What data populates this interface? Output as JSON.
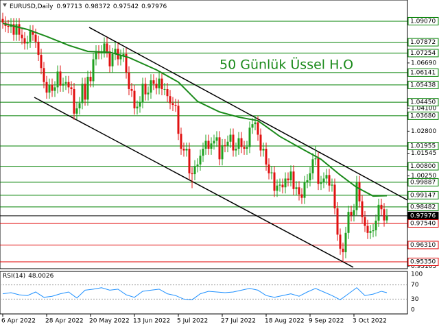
{
  "chart_data": {
    "type": "candlestick",
    "symbol": "EURUSD,Daily",
    "up_color": "#1fa01f",
    "down_color": "#e01010",
    "open": [
      1.092,
      1.09,
      1.088,
      1.0875,
      1.089,
      1.083,
      1.089,
      1.083,
      1.081,
      1.078,
      1.079,
      1.085,
      1.083,
      1.079,
      1.0715,
      1.064,
      1.056,
      1.05,
      1.0545,
      1.051,
      1.053,
      1.062,
      1.054,
      1.055,
      1.056,
      1.053,
      1.052,
      1.038,
      1.041,
      1.044,
      1.055,
      1.046,
      1.059,
      1.0565,
      1.069,
      1.0735,
      1.0725,
      1.0735,
      1.078,
      1.0735,
      1.065,
      1.072,
      1.075,
      1.069,
      1.071,
      1.072,
      1.0615,
      1.052,
      1.051,
      1.041,
      1.042,
      1.0445,
      1.055,
      1.049,
      1.05,
      1.057,
      1.055,
      1.0525,
      1.058,
      1.052,
      1.052,
      1.048,
      1.044,
      1.043,
      1.0425,
      1.0265,
      1.018,
      1.017,
      1.018,
      1.004,
      1.0035,
      1.008,
      1.009,
      1.014,
      1.018,
      1.0225,
      1.018,
      1.021,
      1.0225,
      1.0245,
      1.012,
      1.02,
      1.0195,
      1.022,
      1.026,
      1.017,
      1.018,
      1.024,
      1.019,
      1.018,
      1.019,
      1.03,
      1.032,
      1.033,
      1.026,
      1.017,
      1.018,
      1.009,
      1.004,
      1.0045,
      0.994,
      0.997,
      0.9975,
      0.996,
      1.001,
      1.0,
      1.005,
      0.995,
      0.996,
      0.992,
      0.99,
      0.999,
      1.0,
      1.004,
      1.012,
      1.0125,
      0.998,
      0.999,
      1.001,
      1.003,
      0.997,
      0.9975,
      0.984,
      0.969,
      0.961,
      0.959,
      0.97,
      0.982,
      0.98,
      0.983,
      0.999,
      0.988,
      0.979,
      0.974,
      0.97,
      0.971,
      0.9715,
      0.977,
      0.986,
      0.9835,
      0.97713
    ],
    "high": [
      1.0955,
      1.0935,
      1.0915,
      1.0925,
      1.0925,
      1.0925,
      1.0925,
      1.0865,
      1.0845,
      1.0825,
      1.0885,
      1.0885,
      1.0865,
      1.0825,
      1.075,
      1.0675,
      1.0595,
      1.058,
      1.058,
      1.0565,
      1.0655,
      1.0655,
      1.0585,
      1.0595,
      1.0595,
      1.0565,
      1.0555,
      1.0445,
      1.0475,
      1.0585,
      1.0585,
      1.0625,
      1.0625,
      1.0725,
      1.077,
      1.077,
      1.077,
      1.0815,
      1.0815,
      1.077,
      1.0755,
      1.0785,
      1.0785,
      1.0745,
      1.0755,
      1.0755,
      1.065,
      1.0555,
      1.0545,
      1.0455,
      1.048,
      1.0585,
      1.0585,
      1.0535,
      1.0605,
      1.0605,
      1.0585,
      1.0615,
      1.0615,
      1.0555,
      1.0555,
      1.0515,
      1.0475,
      1.0465,
      1.046,
      1.03,
      1.0215,
      1.0215,
      1.0215,
      1.0075,
      1.0115,
      1.0125,
      1.0175,
      1.0215,
      1.026,
      1.026,
      1.0245,
      1.026,
      1.028,
      1.028,
      1.0235,
      1.0235,
      1.0255,
      1.0295,
      1.0295,
      1.0215,
      1.0275,
      1.0275,
      1.0225,
      1.0225,
      1.0335,
      1.0355,
      1.0365,
      1.0365,
      1.0295,
      1.0215,
      1.0215,
      1.0125,
      1.008,
      1.008,
      1.0005,
      1.001,
      1.001,
      1.0045,
      1.0045,
      1.0085,
      1.0085,
      0.9995,
      0.9995,
      0.9955,
      1.0025,
      1.0035,
      1.0075,
      1.0155,
      1.0195,
      1.016,
      1.0025,
      1.0045,
      1.0065,
      1.0065,
      1.001,
      1.001,
      0.9875,
      0.9725,
      0.9645,
      0.9735,
      0.9855,
      0.9855,
      0.9865,
      1.0025,
      1.0025,
      0.9915,
      0.9825,
      0.9775,
      0.9745,
      0.975,
      0.9805,
      0.9895,
      0.9895,
      0.987,
      0.98372
    ],
    "low": [
      1.0865,
      1.0845,
      1.084,
      1.084,
      1.0795,
      1.0795,
      1.0795,
      1.0775,
      1.0745,
      1.0745,
      1.0755,
      1.0795,
      1.0755,
      1.068,
      1.0605,
      1.0525,
      1.0465,
      1.0465,
      1.0475,
      1.0475,
      1.0495,
      1.0505,
      1.0505,
      1.0515,
      1.0495,
      1.0485,
      1.0345,
      1.0345,
      1.0375,
      1.0405,
      1.0425,
      1.0425,
      1.053,
      1.053,
      1.0655,
      1.069,
      1.069,
      1.07,
      1.07,
      1.0615,
      1.0615,
      1.0685,
      1.0655,
      1.0655,
      1.0675,
      1.058,
      1.0485,
      1.0475,
      1.0375,
      1.0375,
      1.0385,
      1.041,
      1.0455,
      1.0455,
      1.0465,
      1.0515,
      1.049,
      1.049,
      1.0485,
      1.0485,
      1.0445,
      1.0405,
      1.0395,
      1.039,
      1.023,
      1.0145,
      1.0135,
      1.0135,
      1.0005,
      0.9955,
      1.0,
      1.0045,
      1.0055,
      1.0105,
      1.0145,
      1.0145,
      1.0145,
      1.0175,
      1.019,
      1.0085,
      1.0085,
      1.016,
      1.016,
      1.0185,
      1.0135,
      1.0135,
      1.0145,
      1.0155,
      1.0145,
      1.0145,
      1.0155,
      1.0265,
      1.0285,
      1.0225,
      1.0135,
      1.0135,
      1.0055,
      1.0005,
      1.0005,
      0.9905,
      0.9905,
      0.9935,
      0.9925,
      0.9925,
      0.9965,
      0.9965,
      0.9915,
      0.9915,
      0.9885,
      0.9865,
      0.9865,
      0.9955,
      0.9965,
      1.0005,
      1.0085,
      0.9945,
      0.9945,
      0.9955,
      0.9975,
      0.9935,
      0.9935,
      0.9805,
      0.9655,
      0.9575,
      0.9536,
      0.9555,
      0.9665,
      0.9765,
      0.9765,
      0.9795,
      0.9845,
      0.9755,
      0.9705,
      0.9665,
      0.9665,
      0.9675,
      0.968,
      0.9735,
      0.98,
      0.9736,
      0.97542
    ],
    "close": [
      1.09,
      1.088,
      1.0875,
      1.089,
      1.083,
      1.089,
      1.083,
      1.081,
      1.078,
      1.079,
      1.085,
      1.083,
      1.079,
      1.0715,
      1.064,
      1.056,
      1.05,
      1.0545,
      1.051,
      1.053,
      1.062,
      1.054,
      1.055,
      1.056,
      1.053,
      1.052,
      1.038,
      1.041,
      1.044,
      1.055,
      1.046,
      1.059,
      1.0565,
      1.069,
      1.0735,
      1.0725,
      1.0735,
      1.078,
      1.0735,
      1.065,
      1.072,
      1.075,
      1.069,
      1.071,
      1.072,
      1.0615,
      1.052,
      1.051,
      1.041,
      1.042,
      1.0445,
      1.055,
      1.049,
      1.05,
      1.057,
      1.055,
      1.0525,
      1.058,
      1.052,
      1.052,
      1.048,
      1.044,
      1.043,
      1.0425,
      1.0265,
      1.018,
      1.017,
      1.018,
      1.004,
      1.0035,
      1.008,
      1.009,
      1.014,
      1.018,
      1.0225,
      1.018,
      1.021,
      1.0225,
      1.0245,
      1.012,
      1.02,
      1.0195,
      1.022,
      1.026,
      1.017,
      1.018,
      1.024,
      1.019,
      1.018,
      1.019,
      1.03,
      1.032,
      1.033,
      1.026,
      1.017,
      1.018,
      1.009,
      1.004,
      1.0045,
      0.994,
      0.997,
      0.9975,
      0.996,
      1.001,
      1.0,
      1.005,
      0.995,
      0.996,
      0.992,
      0.99,
      0.999,
      1.0,
      1.004,
      1.012,
      1.0125,
      0.998,
      0.999,
      1.001,
      1.003,
      0.997,
      0.9975,
      0.984,
      0.969,
      0.961,
      0.959,
      0.97,
      0.982,
      0.98,
      0.983,
      0.999,
      0.988,
      0.979,
      0.974,
      0.97,
      0.971,
      0.9715,
      0.977,
      0.986,
      0.9835,
      0.9771,
      0.97976
    ],
    "xlim": [
      -1,
      147.5
    ],
    "ylim": [
      0.9496,
      1.1028
    ],
    "xticks": [
      {
        "value": 0,
        "label": "6 Apr 2022"
      },
      {
        "value": 16,
        "label": "28 Apr 2022"
      },
      {
        "value": 32,
        "label": "20 May 2022"
      },
      {
        "value": 48,
        "label": "13 Jun 2022"
      },
      {
        "value": 64,
        "label": "5 Jul 2022"
      },
      {
        "value": 80,
        "label": "27 Jul 2022"
      },
      {
        "value": 96,
        "label": "18 Aug 2022"
      },
      {
        "value": 112,
        "label": "9 Sep 2022"
      },
      {
        "value": 128,
        "label": "3 Oct 2022"
      }
    ],
    "yticks": [
      {
        "value": 1.0669,
        "label": "1.06690"
      },
      {
        "value": 1.041,
        "label": "1.04100"
      },
      {
        "value": 1.028,
        "label": "1.02800"
      },
      {
        "value": 1.01545,
        "label": "1.01545"
      },
      {
        "value": 1.0025,
        "label": "1.00250"
      },
      {
        "value": 0.95105,
        "label": "0.95105"
      }
    ],
    "levels": [
      {
        "value": 1.0907,
        "label": "1.09070",
        "color": "#008000"
      },
      {
        "value": 1.07872,
        "label": "1.07872",
        "color": "#008000"
      },
      {
        "value": 1.07254,
        "label": "1.07254",
        "color": "#008000"
      },
      {
        "value": 1.06141,
        "label": "1.06141",
        "color": "#008000"
      },
      {
        "value": 1.05438,
        "label": "1.05438",
        "color": "#008000"
      },
      {
        "value": 1.0445,
        "label": "1.04450",
        "color": "#008000"
      },
      {
        "value": 1.0368,
        "label": "1.03680",
        "color": "#008000"
      },
      {
        "value": 1.01955,
        "label": "1.01955",
        "color": "#008000"
      },
      {
        "value": 1.008,
        "label": "1.00800",
        "color": "#008000"
      },
      {
        "value": 0.99887,
        "label": "0.99887",
        "color": "#008000"
      },
      {
        "value": 0.99147,
        "label": "0.99147",
        "color": "#008000"
      },
      {
        "value": 0.98482,
        "label": "0.98482",
        "color": "#008000"
      },
      {
        "value": 0.97976,
        "label": "0.97976",
        "color": "#000000"
      },
      {
        "value": 0.9754,
        "label": "0.97540",
        "color": "#e00000"
      },
      {
        "value": 0.9631,
        "label": "0.96310",
        "color": "#e00000"
      },
      {
        "value": 0.9535,
        "label": "0.95350",
        "color": "#e00000"
      }
    ],
    "ema": {
      "name": "50 Günlük Üssel H.O",
      "color": "#1a8a1a",
      "x": [
        0,
        9,
        16,
        24,
        31,
        39,
        46,
        56,
        64,
        71,
        79,
        86,
        93,
        101,
        109,
        116,
        123,
        129,
        135,
        140
      ],
      "values": [
        1.0895,
        1.086,
        1.082,
        1.077,
        1.0735,
        1.073,
        1.07,
        1.063,
        1.056,
        1.045,
        1.039,
        1.036,
        1.034,
        1.025,
        1.018,
        1.012,
        1.003,
        0.996,
        0.991,
        0.9912
      ]
    },
    "trend_lines": [
      {
        "x": [
          31.5,
          147.5
        ],
        "values": [
          1.0872,
          0.9887
        ]
      },
      {
        "x": [
          11.5,
          127.75
        ],
        "values": [
          1.0473,
          0.9504
        ]
      }
    ],
    "rsi": {
      "label": "RSI(14)",
      "color": "#1e90ff",
      "ylim": [
        0,
        100
      ],
      "yticks": [
        100,
        70,
        30,
        0
      ],
      "x": [
        0,
        3,
        6,
        9,
        12,
        15,
        18,
        21,
        24,
        27,
        30,
        33,
        36,
        39,
        42,
        45,
        48,
        51,
        54,
        57,
        60,
        63,
        66,
        69,
        72,
        75,
        78,
        81,
        84,
        87,
        90,
        93,
        96,
        99,
        102,
        105,
        108,
        111,
        114,
        117,
        120,
        123,
        126,
        129,
        132,
        135,
        138,
        140
      ],
      "values": [
        45,
        48,
        42,
        40,
        50,
        35,
        38,
        45,
        50,
        33,
        55,
        58,
        62,
        55,
        58,
        42,
        35,
        52,
        55,
        58,
        45,
        40,
        30,
        28,
        45,
        52,
        50,
        48,
        50,
        55,
        60,
        55,
        40,
        35,
        40,
        45,
        38,
        50,
        60,
        50,
        40,
        28,
        45,
        62,
        40,
        44,
        52,
        48.0026
      ]
    }
  }
}
